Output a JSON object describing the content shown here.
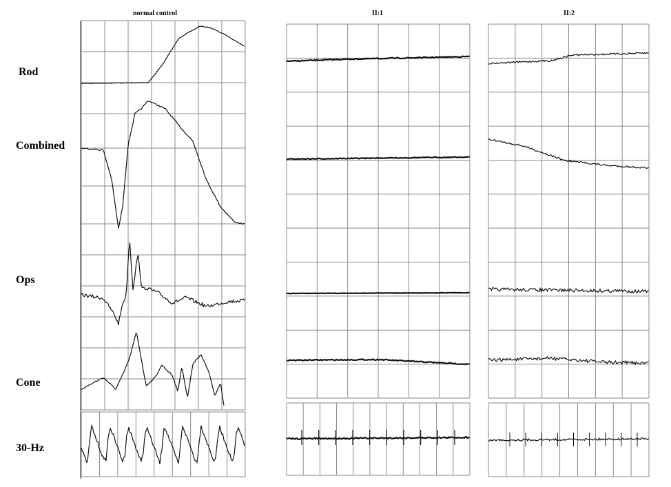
{
  "headers": [
    "normal control",
    "II:1",
    "II:2"
  ],
  "rows": [
    "Rod",
    "Combined",
    "Ops",
    "Cone",
    "30-Hz"
  ]
}
